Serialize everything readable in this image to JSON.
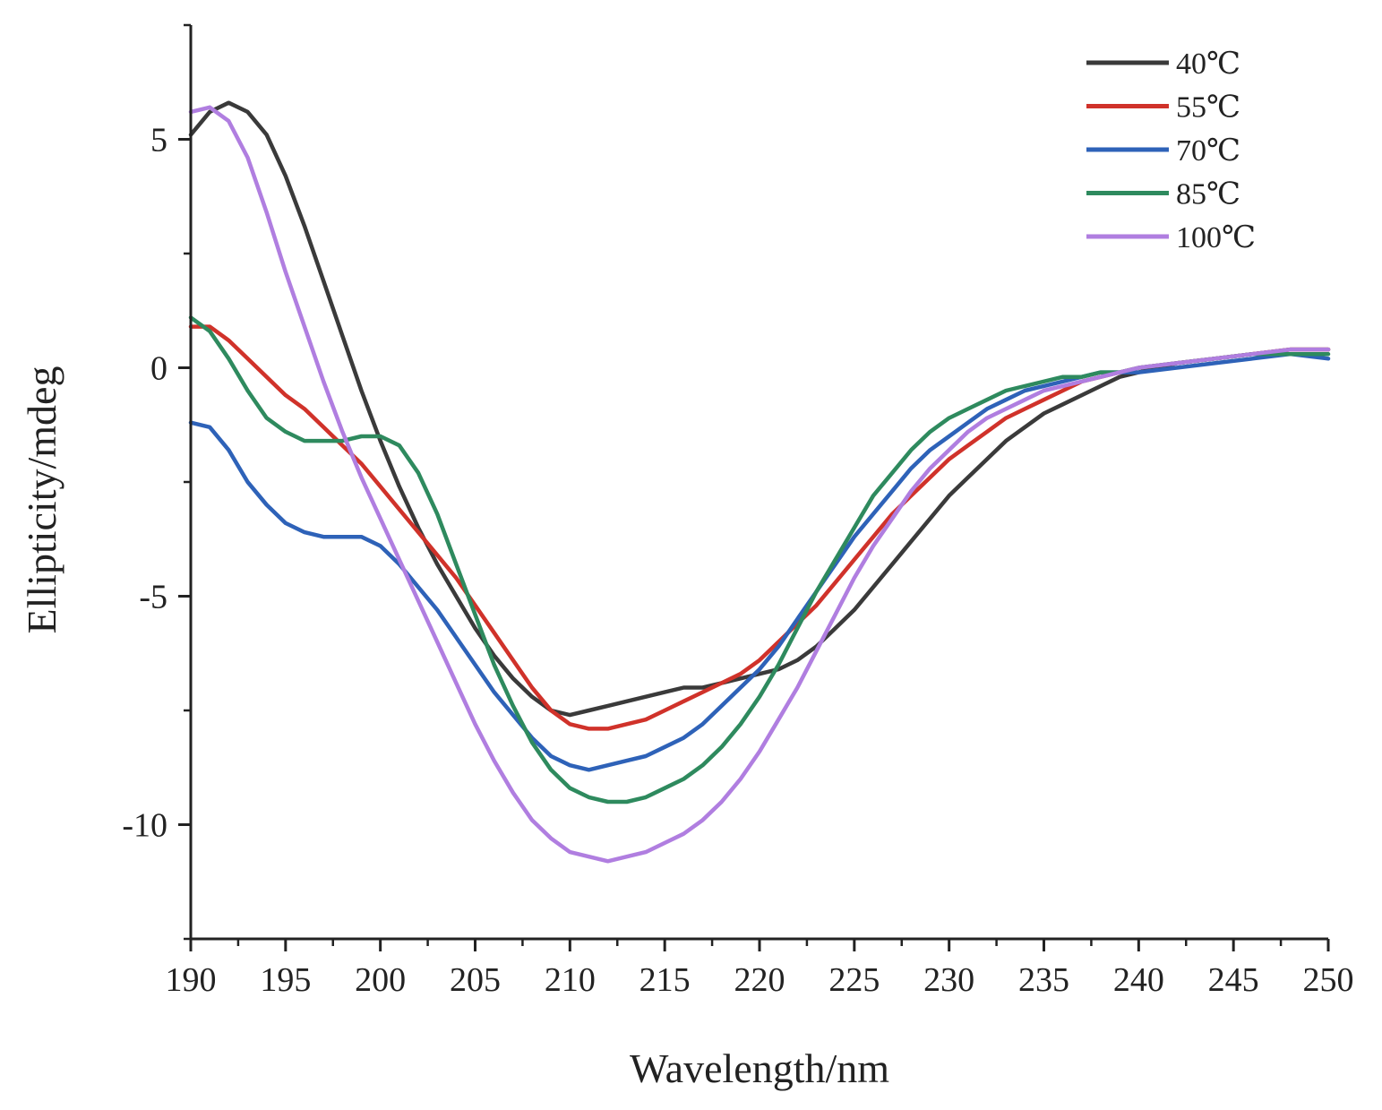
{
  "chart_data": {
    "type": "line",
    "title": "",
    "xlabel": "Wavelength/nm",
    "ylabel": "Ellipticity/mdeg",
    "xlim": [
      190,
      250
    ],
    "ylim": [
      -12.5,
      7.5
    ],
    "xticks": [
      190,
      195,
      200,
      205,
      210,
      215,
      220,
      225,
      230,
      235,
      240,
      245,
      250
    ],
    "xtick_labels": [
      "190",
      "195",
      "200",
      "205",
      "210",
      "215",
      "220",
      "225",
      "230",
      "235",
      "240",
      "245",
      "250"
    ],
    "yticks": [
      5,
      0,
      -5,
      -10
    ],
    "ytick_labels": [
      "5",
      "0",
      "-5",
      "-10"
    ],
    "grid": false,
    "legend_position": "top-right",
    "series": [
      {
        "name": "40℃",
        "color": "#3a3a3a",
        "x": [
          190,
          191,
          192,
          193,
          194,
          195,
          196,
          197,
          198,
          199,
          200,
          201,
          202,
          203,
          204,
          205,
          206,
          207,
          208,
          209,
          210,
          211,
          212,
          213,
          214,
          215,
          216,
          217,
          218,
          219,
          220,
          221,
          222,
          223,
          224,
          225,
          226,
          227,
          228,
          229,
          230,
          231,
          232,
          233,
          234,
          235,
          236,
          237,
          238,
          239,
          240,
          242,
          244,
          246,
          248,
          250
        ],
        "y": [
          5.1,
          5.6,
          5.8,
          5.6,
          5.1,
          4.2,
          3.1,
          1.9,
          0.7,
          -0.5,
          -1.6,
          -2.6,
          -3.5,
          -4.3,
          -5.0,
          -5.7,
          -6.3,
          -6.8,
          -7.2,
          -7.5,
          -7.6,
          -7.5,
          -7.4,
          -7.3,
          -7.2,
          -7.1,
          -7.0,
          -7.0,
          -6.9,
          -6.8,
          -6.7,
          -6.6,
          -6.4,
          -6.1,
          -5.7,
          -5.3,
          -4.8,
          -4.3,
          -3.8,
          -3.3,
          -2.8,
          -2.4,
          -2.0,
          -1.6,
          -1.3,
          -1.0,
          -0.8,
          -0.6,
          -0.4,
          -0.2,
          -0.1,
          0.1,
          0.2,
          0.3,
          0.4,
          0.4
        ]
      },
      {
        "name": "55℃",
        "color": "#d0322a",
        "x": [
          190,
          191,
          192,
          193,
          194,
          195,
          196,
          197,
          198,
          199,
          200,
          201,
          202,
          203,
          204,
          205,
          206,
          207,
          208,
          209,
          210,
          211,
          212,
          213,
          214,
          215,
          216,
          217,
          218,
          219,
          220,
          221,
          222,
          223,
          224,
          225,
          226,
          227,
          228,
          229,
          230,
          231,
          232,
          233,
          234,
          235,
          236,
          237,
          238,
          239,
          240,
          242,
          244,
          246,
          248,
          250
        ],
        "y": [
          0.9,
          0.9,
          0.6,
          0.2,
          -0.2,
          -0.6,
          -0.9,
          -1.3,
          -1.7,
          -2.1,
          -2.6,
          -3.1,
          -3.6,
          -4.1,
          -4.6,
          -5.2,
          -5.8,
          -6.4,
          -7.0,
          -7.5,
          -7.8,
          -7.9,
          -7.9,
          -7.8,
          -7.7,
          -7.5,
          -7.3,
          -7.1,
          -6.9,
          -6.7,
          -6.4,
          -6.0,
          -5.6,
          -5.2,
          -4.7,
          -4.2,
          -3.7,
          -3.2,
          -2.8,
          -2.4,
          -2.0,
          -1.7,
          -1.4,
          -1.1,
          -0.9,
          -0.7,
          -0.5,
          -0.3,
          -0.2,
          -0.1,
          0.0,
          0.1,
          0.2,
          0.3,
          0.4,
          0.4
        ]
      },
      {
        "name": "70℃",
        "color": "#2e62b8",
        "x": [
          190,
          191,
          192,
          193,
          194,
          195,
          196,
          197,
          198,
          199,
          200,
          201,
          202,
          203,
          204,
          205,
          206,
          207,
          208,
          209,
          210,
          211,
          212,
          213,
          214,
          215,
          216,
          217,
          218,
          219,
          220,
          221,
          222,
          223,
          224,
          225,
          226,
          227,
          228,
          229,
          230,
          231,
          232,
          233,
          234,
          235,
          236,
          237,
          238,
          239,
          240,
          242,
          244,
          246,
          248,
          250
        ],
        "y": [
          -1.2,
          -1.3,
          -1.8,
          -2.5,
          -3.0,
          -3.4,
          -3.6,
          -3.7,
          -3.7,
          -3.7,
          -3.9,
          -4.3,
          -4.8,
          -5.3,
          -5.9,
          -6.5,
          -7.1,
          -7.6,
          -8.1,
          -8.5,
          -8.7,
          -8.8,
          -8.7,
          -8.6,
          -8.5,
          -8.3,
          -8.1,
          -7.8,
          -7.4,
          -7.0,
          -6.6,
          -6.1,
          -5.5,
          -4.9,
          -4.3,
          -3.7,
          -3.2,
          -2.7,
          -2.2,
          -1.8,
          -1.5,
          -1.2,
          -0.9,
          -0.7,
          -0.5,
          -0.4,
          -0.3,
          -0.2,
          -0.1,
          -0.1,
          -0.1,
          0.0,
          0.1,
          0.2,
          0.3,
          0.2
        ]
      },
      {
        "name": "85℃",
        "color": "#2e8a5e",
        "x": [
          190,
          191,
          192,
          193,
          194,
          195,
          196,
          197,
          198,
          199,
          200,
          201,
          202,
          203,
          204,
          205,
          206,
          207,
          208,
          209,
          210,
          211,
          212,
          213,
          214,
          215,
          216,
          217,
          218,
          219,
          220,
          221,
          222,
          223,
          224,
          225,
          226,
          227,
          228,
          229,
          230,
          231,
          232,
          233,
          234,
          235,
          236,
          237,
          238,
          239,
          240,
          242,
          244,
          246,
          248,
          250
        ],
        "y": [
          1.1,
          0.8,
          0.2,
          -0.5,
          -1.1,
          -1.4,
          -1.6,
          -1.6,
          -1.6,
          -1.5,
          -1.5,
          -1.7,
          -2.3,
          -3.2,
          -4.3,
          -5.4,
          -6.5,
          -7.4,
          -8.2,
          -8.8,
          -9.2,
          -9.4,
          -9.5,
          -9.5,
          -9.4,
          -9.2,
          -9.0,
          -8.7,
          -8.3,
          -7.8,
          -7.2,
          -6.5,
          -5.7,
          -4.9,
          -4.2,
          -3.5,
          -2.8,
          -2.3,
          -1.8,
          -1.4,
          -1.1,
          -0.9,
          -0.7,
          -0.5,
          -0.4,
          -0.3,
          -0.2,
          -0.2,
          -0.1,
          -0.1,
          0.0,
          0.1,
          0.2,
          0.3,
          0.3,
          0.3
        ]
      },
      {
        "name": "100℃",
        "color": "#b07ee0",
        "x": [
          190,
          191,
          192,
          193,
          194,
          195,
          196,
          197,
          198,
          199,
          200,
          201,
          202,
          203,
          204,
          205,
          206,
          207,
          208,
          209,
          210,
          211,
          212,
          213,
          214,
          215,
          216,
          217,
          218,
          219,
          220,
          221,
          222,
          223,
          224,
          225,
          226,
          227,
          228,
          229,
          230,
          231,
          232,
          233,
          234,
          235,
          236,
          237,
          238,
          239,
          240,
          242,
          244,
          246,
          248,
          250
        ],
        "y": [
          5.6,
          5.7,
          5.4,
          4.6,
          3.4,
          2.1,
          0.9,
          -0.3,
          -1.4,
          -2.4,
          -3.3,
          -4.2,
          -5.1,
          -6.0,
          -6.9,
          -7.8,
          -8.6,
          -9.3,
          -9.9,
          -10.3,
          -10.6,
          -10.7,
          -10.8,
          -10.7,
          -10.6,
          -10.4,
          -10.2,
          -9.9,
          -9.5,
          -9.0,
          -8.4,
          -7.7,
          -7.0,
          -6.2,
          -5.4,
          -4.6,
          -3.9,
          -3.3,
          -2.7,
          -2.2,
          -1.8,
          -1.4,
          -1.1,
          -0.9,
          -0.7,
          -0.5,
          -0.4,
          -0.3,
          -0.2,
          -0.1,
          0.0,
          0.1,
          0.2,
          0.3,
          0.4,
          0.4
        ]
      }
    ]
  }
}
